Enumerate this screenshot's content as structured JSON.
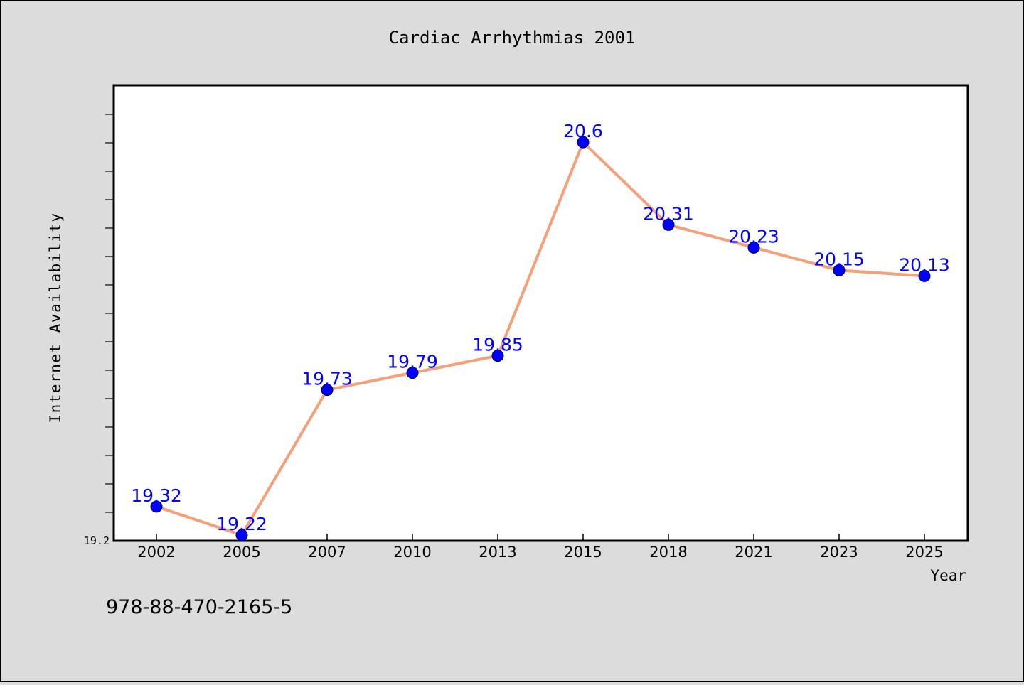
{
  "colors": {
    "background": "#dcdcdc",
    "plot_background": "#ffffff",
    "line": "#f4a07a",
    "marker": "#0000ff",
    "data_label": "#0000ff"
  },
  "footnote": "978-88-470-2165-5",
  "chart_data": {
    "type": "line",
    "title": "Cardiac Arrhythmias 2001",
    "xlabel": "Year",
    "ylabel": "Internet Availability",
    "categories": [
      "2002",
      "2005",
      "2007",
      "2010",
      "2013",
      "2015",
      "2018",
      "2021",
      "2023",
      "2025"
    ],
    "series": [
      {
        "values": [
          19.32,
          19.22,
          19.73,
          19.79,
          19.85,
          20.6,
          20.31,
          20.23,
          20.15,
          20.13
        ],
        "labels": [
          "19.32",
          "19.22",
          "19.73",
          "19.79",
          "19.85",
          "20.6",
          "20.31",
          "20.23",
          "20.15",
          "20.13"
        ]
      }
    ],
    "ylim": [
      19.2,
      20.8
    ],
    "yticks": [
      19.2
    ],
    "ytick_labels": [
      "19.2"
    ],
    "grid": false,
    "legend": "none"
  }
}
